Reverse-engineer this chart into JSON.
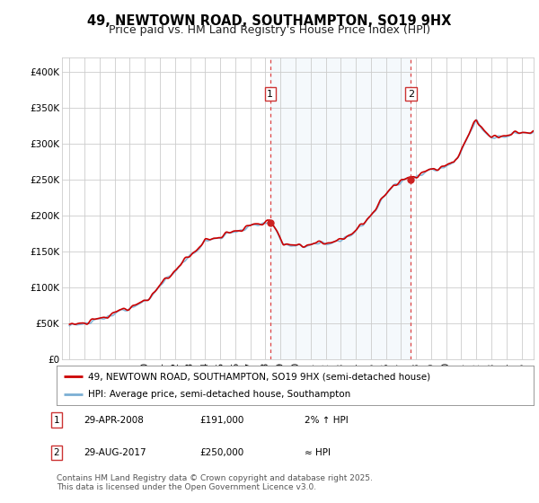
{
  "title": "49, NEWTOWN ROAD, SOUTHAMPTON, SO19 9HX",
  "subtitle": "Price paid vs. HM Land Registry's House Price Index (HPI)",
  "ylabel_ticks": [
    "£0",
    "£50K",
    "£100K",
    "£150K",
    "£200K",
    "£250K",
    "£300K",
    "£350K",
    "£400K"
  ],
  "ytick_values": [
    0,
    50000,
    100000,
    150000,
    200000,
    250000,
    300000,
    350000,
    400000
  ],
  "ylim": [
    0,
    420000
  ],
  "xlim_start": 1994.5,
  "xlim_end": 2025.8,
  "bg_color": "#ffffff",
  "plot_bg_color": "#ffffff",
  "grid_color": "#cccccc",
  "hpi_color": "#7bafd4",
  "price_color": "#cc0000",
  "sale1_x": 2008.32,
  "sale1_y": 191000,
  "sale2_x": 2017.65,
  "sale2_y": 250000,
  "legend_label1": "49, NEWTOWN ROAD, SOUTHAMPTON, SO19 9HX (semi-detached house)",
  "legend_label2": "HPI: Average price, semi-detached house, Southampton",
  "annotation1_date": "29-APR-2008",
  "annotation1_price": "£191,000",
  "annotation1_hpi": "2% ↑ HPI",
  "annotation2_date": "29-AUG-2017",
  "annotation2_price": "£250,000",
  "annotation2_hpi": "≈ HPI",
  "footer": "Contains HM Land Registry data © Crown copyright and database right 2025.\nThis data is licensed under the Open Government Licence v3.0.",
  "title_fontsize": 10.5,
  "subtitle_fontsize": 9,
  "tick_fontsize": 7.5,
  "legend_fontsize": 7.5,
  "footer_fontsize": 6.5
}
